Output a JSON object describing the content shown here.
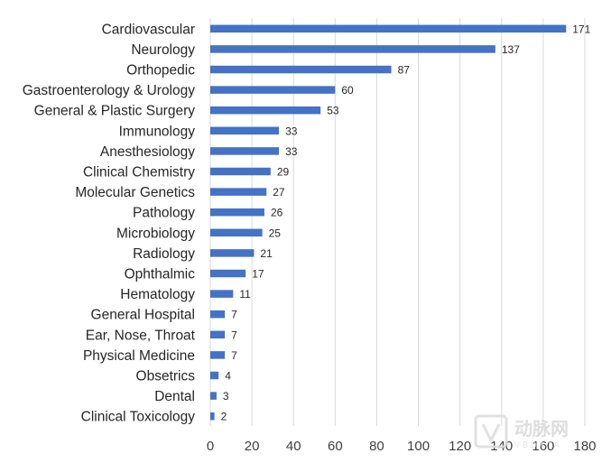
{
  "chart_data": {
    "type": "bar",
    "orientation": "horizontal",
    "title": "",
    "xlabel": "",
    "ylabel": "",
    "xlim": [
      0,
      180
    ],
    "xticks": [
      0,
      20,
      40,
      60,
      80,
      100,
      120,
      140,
      160,
      180
    ],
    "grid": true,
    "bar_color": "#4472c4",
    "categories": [
      "Cardiovascular",
      "Neurology",
      "Orthopedic",
      "Gastroenterology & Urology",
      "General & Plastic Surgery",
      "Immunology",
      "Anesthesiology",
      "Clinical Chemistry",
      "Molecular Genetics",
      "Pathology",
      "Microbiology",
      "Radiology",
      "Ophthalmic",
      "Hematology",
      "General Hospital",
      "Ear, Nose, Throat",
      "Physical Medicine",
      "Obsetrics",
      "Dental",
      "Clinical Toxicology"
    ],
    "values": [
      171,
      137,
      87,
      60,
      53,
      33,
      33,
      29,
      27,
      26,
      25,
      21,
      17,
      11,
      7,
      7,
      7,
      4,
      3,
      2
    ]
  },
  "watermark": {
    "text": "动脉网",
    "sub": "VBDATA"
  }
}
